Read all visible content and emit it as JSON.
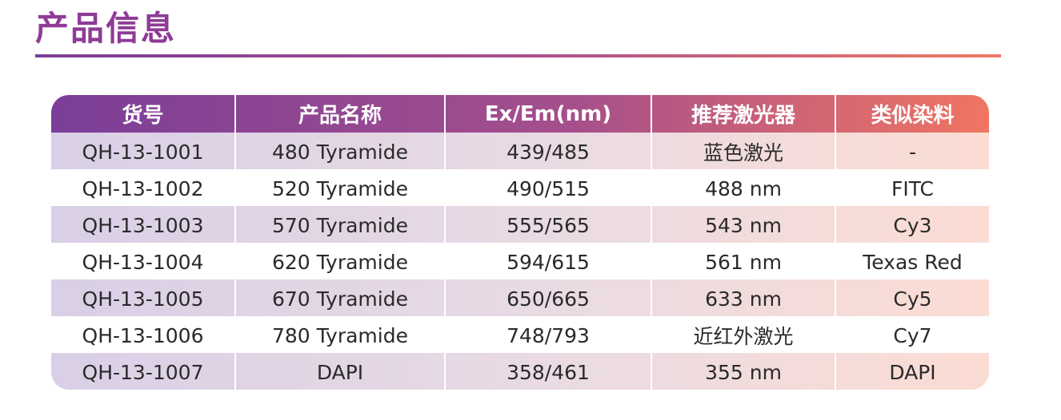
{
  "page": {
    "title": "产品信息"
  },
  "colors": {
    "title": "#8e3b97",
    "header_start": "#7b3e98",
    "header_end": "#f07562"
  },
  "table": {
    "headers": [
      "货号",
      "产品名称",
      "Ex/Em(nm)",
      "推荐激光器",
      "类似染料"
    ],
    "rows": [
      [
        "QH-13-1001",
        "480 Tyramide",
        "439/485",
        "蓝色激光",
        "-"
      ],
      [
        "QH-13-1002",
        "520 Tyramide",
        "490/515",
        "488 nm",
        "FITC"
      ],
      [
        "QH-13-1003",
        "570 Tyramide",
        "555/565",
        "543 nm",
        "Cy3"
      ],
      [
        "QH-13-1004",
        "620 Tyramide",
        "594/615",
        "561 nm",
        "Texas Red"
      ],
      [
        "QH-13-1005",
        "670 Tyramide",
        "650/665",
        "633 nm",
        "Cy5"
      ],
      [
        "QH-13-1006",
        "780 Tyramide",
        "748/793",
        "近红外激光",
        "Cy7"
      ],
      [
        "QH-13-1007",
        "DAPI",
        "358/461",
        "355 nm",
        "DAPI"
      ]
    ]
  }
}
